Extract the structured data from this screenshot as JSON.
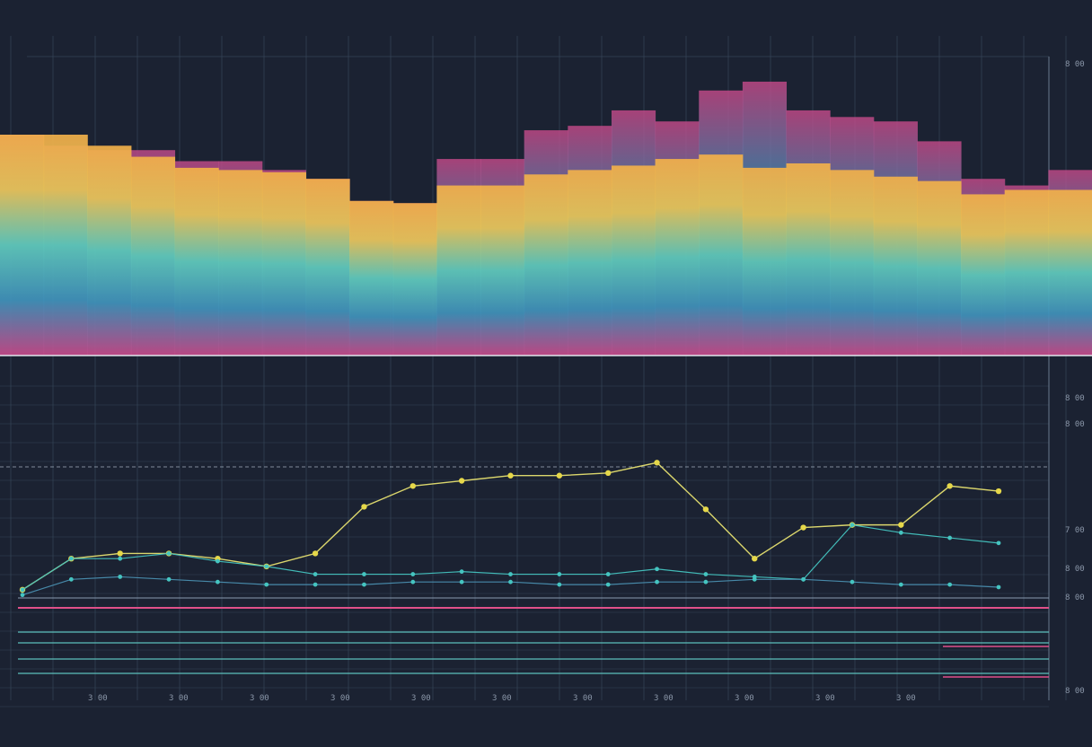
{
  "colors": {
    "background": "#1b2232",
    "grid": "#3a4a5e",
    "baseline": "#dfe6ee",
    "line_a": "#e6e070",
    "line_b": "#45c4c0",
    "line_c": "#4a8fb0",
    "pink": "#e0508a",
    "cyan": "#5fc6c2",
    "marker_yellow": "#e6d84a",
    "marker_teal": "#45c4c0",
    "bar_gradient": [
      "#f2b04a",
      "#e8c255",
      "#5fc6b8",
      "#3f8fb8",
      "#c84a8a"
    ]
  },
  "chart_data": [
    {
      "type": "bar",
      "title": "",
      "xlabel": "",
      "ylabel": "",
      "ylim": [
        0,
        100
      ],
      "grid": true,
      "tick_labels_right": [
        "8 00"
      ],
      "series": [
        {
          "values": [
            100,
            100,
            95,
            90,
            85,
            84,
            83,
            80,
            70,
            69,
            77,
            77,
            82,
            84,
            86,
            89,
            91,
            85,
            87,
            84,
            81,
            79,
            73,
            75,
            75
          ]
        },
        {
          "values": [
            100,
            95,
            93,
            93,
            88,
            88,
            84,
            80,
            70,
            69,
            89,
            89,
            102,
            104,
            111,
            106,
            120,
            124,
            111,
            108,
            106,
            97,
            80,
            77,
            84
          ]
        }
      ]
    },
    {
      "type": "line",
      "title": "",
      "xlabel": "",
      "ylabel": "",
      "ylim": [
        0,
        100
      ],
      "grid": true,
      "x_tick_labels": [
        "3 00",
        "3 00",
        "3 00",
        "3 00",
        "3 00",
        "3 00",
        "3 00",
        "3 00",
        "3 00",
        "3 00",
        "3 00"
      ],
      "y_tick_labels_right": [
        "8 00",
        "8 00",
        "7 00",
        "8 00",
        "8 00",
        "8 00"
      ],
      "x": [
        0,
        5,
        10,
        15,
        20,
        25,
        30,
        35,
        40,
        45,
        50,
        55,
        60,
        65,
        70,
        75,
        80,
        85,
        90,
        95,
        100
      ],
      "series": [
        {
          "values": [
            8,
            20,
            22,
            22,
            20,
            17,
            22,
            40,
            48,
            50,
            52,
            52,
            53,
            57,
            39,
            20,
            32,
            33,
            33,
            48,
            46
          ]
        },
        {
          "values": [
            8,
            20,
            20,
            22,
            19,
            17,
            14,
            14,
            14,
            15,
            14,
            14,
            14,
            16,
            14,
            13,
            12,
            33,
            30,
            28,
            26
          ]
        },
        {
          "values": [
            6,
            12,
            13,
            12,
            11,
            10,
            10,
            10,
            11,
            11,
            11,
            10,
            10,
            11,
            11,
            12,
            12,
            11,
            10,
            10,
            9
          ]
        }
      ]
    }
  ]
}
